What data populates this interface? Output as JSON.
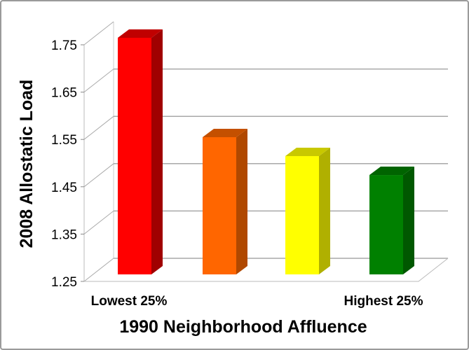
{
  "chart_data": {
    "type": "bar",
    "style": "3d-column",
    "title": "",
    "xlabel": "1990 Neighborhood Affluence",
    "ylabel": "2008 Allostatic Load",
    "categories": [
      "Lowest 25%",
      "",
      "",
      "Highest 25%"
    ],
    "values": [
      1.75,
      1.54,
      1.5,
      1.46
    ],
    "colors": [
      "#ff0000",
      "#ff6600",
      "#ffff00",
      "#008000"
    ],
    "side_colors": [
      "#a00000",
      "#b04800",
      "#b0b000",
      "#005800"
    ],
    "top_colors": [
      "#c00000",
      "#c45000",
      "#c8c800",
      "#006400"
    ],
    "ylim": [
      1.25,
      1.75
    ],
    "yticks": [
      "1.25",
      "1.35",
      "1.45",
      "1.55",
      "1.65",
      "1.75"
    ],
    "grid": true,
    "legend": "none"
  }
}
